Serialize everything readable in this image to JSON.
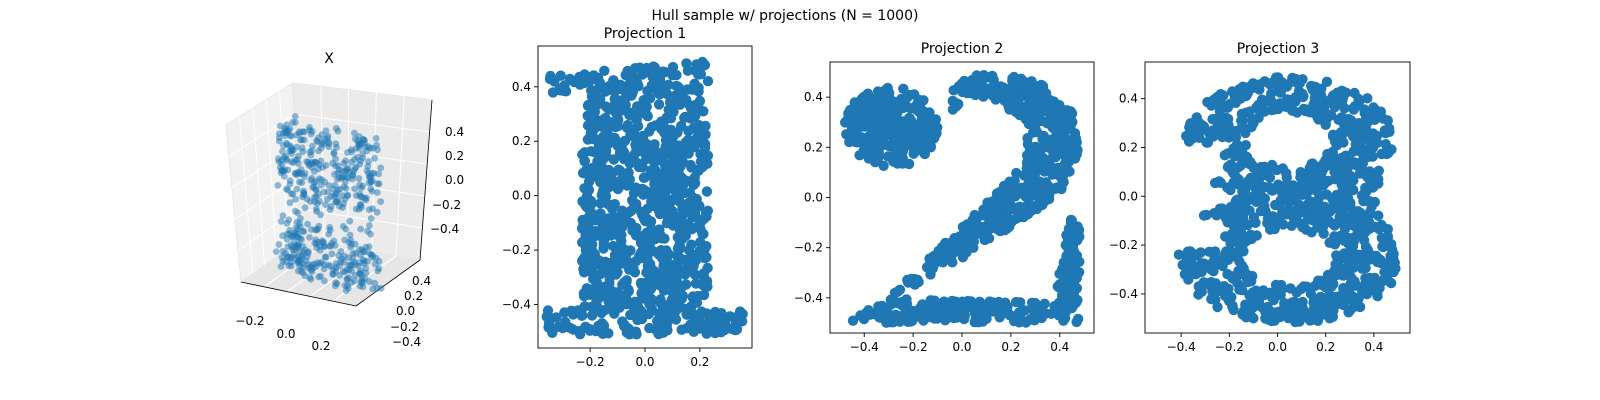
{
  "figure": {
    "suptitle": "Hull sample w/ projections (N = 1000)",
    "marker_color": "#1f77b4"
  },
  "chart_data": [
    {
      "type": "scatter",
      "projection": "3d",
      "title": "X",
      "xlabel": "",
      "ylabel": "",
      "zlabel": "",
      "x_ticks": [
        "−0.2",
        "0.0",
        "0.2"
      ],
      "y_ticks": [
        "−0.4",
        "−0.2",
        "0.0",
        "0.2",
        "0.4"
      ],
      "z_ticks": [
        "−0.4",
        "−0.2",
        "0.0",
        "0.2",
        "0.4"
      ],
      "xlim": [
        -0.38,
        0.38
      ],
      "ylim": [
        -0.5,
        0.5
      ],
      "zlim": [
        -0.5,
        0.5
      ],
      "shape": "3D hull whose projections trace the digits 1, 2 and 3",
      "point_count": 1000,
      "alpha": 0.5,
      "grid": true
    },
    {
      "type": "scatter",
      "title": "Projection 1",
      "x_ticks": [
        "−0.2",
        "0.0",
        "0.2"
      ],
      "y_ticks": [
        "−0.4",
        "−0.2",
        "0.0",
        "0.2",
        "0.4"
      ],
      "xlim": [
        -0.39,
        0.39
      ],
      "ylim": [
        -0.56,
        0.55
      ],
      "shape": "digit 1",
      "point_count": 1000
    },
    {
      "type": "scatter",
      "title": "Projection 2",
      "x_ticks": [
        "−0.4",
        "−0.2",
        "0.0",
        "0.2",
        "0.4"
      ],
      "y_ticks": [
        "−0.4",
        "−0.2",
        "0.0",
        "0.2",
        "0.4"
      ],
      "xlim": [
        -0.54,
        0.54
      ],
      "ylim": [
        -0.54,
        0.54
      ],
      "shape": "digit 2",
      "point_count": 1000
    },
    {
      "type": "scatter",
      "title": "Projection 3",
      "x_ticks": [
        "−0.4",
        "−0.2",
        "0.0",
        "0.2",
        "0.4"
      ],
      "y_ticks": [
        "−0.4",
        "−0.2",
        "0.0",
        "0.2",
        "0.4"
      ],
      "xlim": [
        -0.55,
        0.55
      ],
      "ylim": [
        -0.56,
        0.55
      ],
      "shape": "digit 3",
      "point_count": 1000
    }
  ]
}
